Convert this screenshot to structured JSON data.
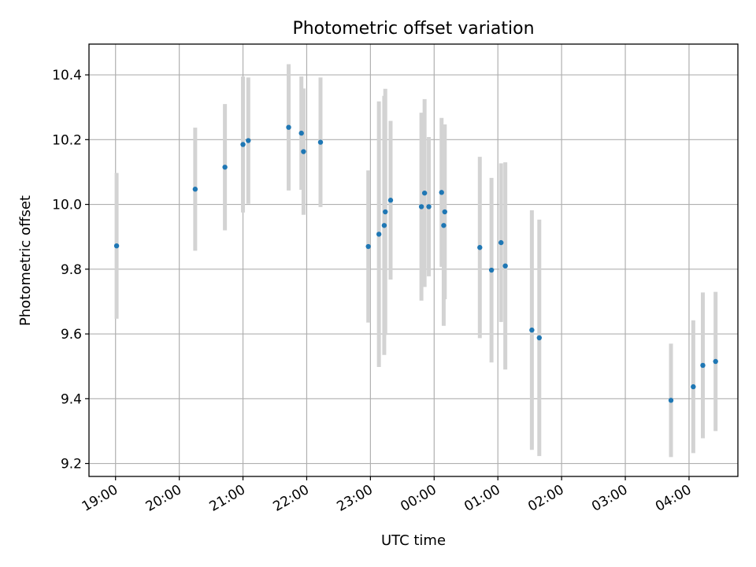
{
  "chart_data": {
    "type": "scatter",
    "title": "Photometric offset variation",
    "xlabel": "UTC time",
    "ylabel": "Photometric offset",
    "x_axis": {
      "kind": "time",
      "start": "19:00",
      "end_limit": "04:46",
      "lower_limit": "18:35"
    },
    "ylim": [
      9.16,
      10.495
    ],
    "x_tick_labels": [
      "19:00",
      "20:00",
      "21:00",
      "22:00",
      "23:00",
      "00:00",
      "01:00",
      "02:00",
      "03:00",
      "04:00"
    ],
    "y_tick_labels": [
      "9.2",
      "9.4",
      "9.6",
      "9.8",
      "10.0",
      "10.2",
      "10.4"
    ],
    "y_ticks": [
      9.2,
      9.4,
      9.6,
      9.8,
      10.0,
      10.2,
      10.4
    ],
    "grid": true,
    "marker_color": "#1f77b4",
    "errorbar_color": "#d3d3d3",
    "points": [
      {
        "t": "19:01",
        "y": 9.872,
        "err": 0.225
      },
      {
        "t": "20:15",
        "y": 10.047,
        "err": 0.19
      },
      {
        "t": "20:43",
        "y": 10.115,
        "err": 0.195
      },
      {
        "t": "21:00",
        "y": 10.185,
        "err": 0.21
      },
      {
        "t": "21:05",
        "y": 10.197,
        "err": 0.195
      },
      {
        "t": "21:43",
        "y": 10.238,
        "err": 0.195
      },
      {
        "t": "21:55",
        "y": 10.22,
        "err": 0.175
      },
      {
        "t": "21:57",
        "y": 10.163,
        "err": 0.195
      },
      {
        "t": "22:13",
        "y": 10.192,
        "err": 0.2
      },
      {
        "t": "22:58",
        "y": 9.87,
        "err": 0.235
      },
      {
        "t": "23:08",
        "y": 9.908,
        "err": 0.41
      },
      {
        "t": "23:13",
        "y": 9.935,
        "err": 0.4
      },
      {
        "t": "23:14",
        "y": 9.977,
        "err": 0.38
      },
      {
        "t": "23:19",
        "y": 10.013,
        "err": 0.245
      },
      {
        "t": "23:48",
        "y": 9.993,
        "err": 0.29
      },
      {
        "t": "23:51",
        "y": 10.035,
        "err": 0.29
      },
      {
        "t": "23:55",
        "y": 9.993,
        "err": 0.215
      },
      {
        "t": "00:07",
        "y": 10.037,
        "err": 0.23
      },
      {
        "t": "00:09",
        "y": 9.935,
        "err": 0.31
      },
      {
        "t": "00:10",
        "y": 9.977,
        "err": 0.27
      },
      {
        "t": "00:43",
        "y": 9.867,
        "err": 0.28
      },
      {
        "t": "00:54",
        "y": 9.797,
        "err": 0.285
      },
      {
        "t": "01:03",
        "y": 9.882,
        "err": 0.245
      },
      {
        "t": "01:07",
        "y": 9.81,
        "err": 0.32
      },
      {
        "t": "01:32",
        "y": 9.612,
        "err": 0.37
      },
      {
        "t": "01:39",
        "y": 9.588,
        "err": 0.365
      },
      {
        "t": "03:43",
        "y": 9.395,
        "err": 0.175
      },
      {
        "t": "04:04",
        "y": 9.437,
        "err": 0.205
      },
      {
        "t": "04:13",
        "y": 9.503,
        "err": 0.225
      },
      {
        "t": "04:25",
        "y": 9.515,
        "err": 0.215
      }
    ]
  }
}
